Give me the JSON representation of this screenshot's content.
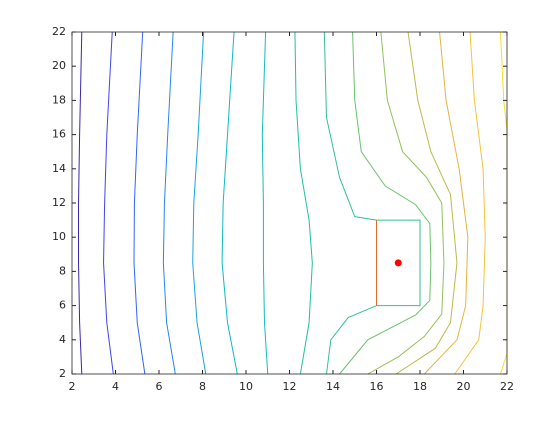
{
  "chart_data": {
    "type": "contour",
    "xlim": [
      2,
      22
    ],
    "ylim": [
      2,
      22
    ],
    "xticks": [
      2,
      4,
      6,
      8,
      10,
      12,
      14,
      16,
      18,
      20,
      22
    ],
    "yticks": [
      2,
      4,
      6,
      8,
      10,
      12,
      14,
      16,
      18,
      20,
      22
    ],
    "series": [
      {
        "color": "#3e26a8",
        "x": [
          2.45,
          2.35,
          2.3,
          2.3,
          2.35,
          2.45
        ],
        "y": [
          2,
          5,
          8.5,
          12,
          16,
          22
        ]
      },
      {
        "color": "#4145e8",
        "x": [
          3.9,
          3.6,
          3.45,
          3.5,
          3.6,
          3.85
        ],
        "y": [
          2,
          5,
          8.5,
          12,
          16,
          22
        ]
      },
      {
        "color": "#3165f9",
        "x": [
          5.35,
          5.0,
          4.85,
          4.87,
          5.0,
          5.25
        ],
        "y": [
          2,
          5,
          8.5,
          12,
          16,
          22
        ]
      },
      {
        "color": "#2686f0",
        "x": [
          6.75,
          6.35,
          6.2,
          6.25,
          6.4,
          6.65
        ],
        "y": [
          2,
          5,
          8.5,
          12,
          16,
          22
        ]
      },
      {
        "color": "#1ca3dc",
        "x": [
          8.15,
          7.75,
          7.55,
          7.6,
          7.8,
          8.05
        ],
        "y": [
          2,
          5,
          8.5,
          12,
          16,
          22
        ]
      },
      {
        "color": "#0fb9c4",
        "x": [
          9.6,
          9.15,
          8.9,
          8.95,
          9.15,
          9.45
        ],
        "y": [
          2,
          5,
          8.5,
          12,
          16,
          22
        ]
      },
      {
        "color": "#14bdb4",
        "x": [
          11.0,
          10.85,
          10.8,
          10.8,
          10.75,
          10.9
        ],
        "y": [
          2,
          5,
          8.5,
          12,
          16,
          22
        ]
      },
      {
        "color": "#22bfa3",
        "x": [
          12.5,
          12.9,
          13.05,
          12.9,
          12.5,
          12.3,
          12.25
        ],
        "y": [
          2,
          5,
          8.5,
          11,
          14,
          18,
          22
        ]
      },
      {
        "color": "#35c08e",
        "x": [
          13.7,
          13.9,
          14.7,
          16,
          18,
          18,
          16,
          15.0,
          14.3,
          13.7,
          13.6
        ],
        "y": [
          2,
          4,
          5.3,
          6,
          6,
          11,
          11,
          11.2,
          13.5,
          17,
          22
        ]
      },
      {
        "color": "#6bc26e",
        "x": [
          14.3,
          15.6,
          17.8,
          18.45,
          18.5,
          18.45,
          17.8,
          16.4,
          15.3,
          15.0,
          14.9
        ],
        "y": [
          2,
          4,
          5.45,
          6.3,
          8.5,
          10.8,
          11.9,
          13.0,
          15,
          18,
          22
        ]
      },
      {
        "color": "#93c15a",
        "x": [
          15.6,
          17.0,
          18.2,
          19.0,
          19.1,
          19.0,
          18.3,
          17.2,
          16.5,
          16.2
        ],
        "y": [
          2,
          3,
          4.2,
          5.5,
          8.5,
          12,
          13.5,
          15,
          18,
          22
        ]
      },
      {
        "color": "#b9bc4a",
        "x": [
          16.9,
          18.7,
          19.4,
          19.7,
          19.4,
          18.5,
          17.9,
          17.45
        ],
        "y": [
          2,
          3.5,
          5,
          8.5,
          12.5,
          15,
          18,
          22
        ]
      },
      {
        "color": "#e4b43f",
        "x": [
          18.2,
          19.7,
          20.1,
          20.2,
          19.8,
          19.2,
          18.9
        ],
        "y": [
          2,
          4,
          6,
          10,
          14,
          18,
          22
        ]
      },
      {
        "color": "#f7c33a",
        "x": [
          19.6,
          20.7,
          20.9,
          21.0,
          20.9,
          20.5,
          20.3
        ],
        "y": [
          2,
          4,
          6,
          10,
          14,
          18,
          22
        ]
      },
      {
        "color": "#f5e025",
        "x": [
          21.7,
          21.85,
          22,
          22,
          21.85,
          21.7
        ],
        "y": [
          2,
          2.6,
          3.2,
          16.3,
          18,
          22
        ]
      },
      {
        "color": "#de6a32",
        "x": [
          16,
          16
        ],
        "y": [
          6,
          11
        ]
      }
    ],
    "points": [
      {
        "x": 17,
        "y": 8.5,
        "color": "#ff0000"
      }
    ]
  }
}
